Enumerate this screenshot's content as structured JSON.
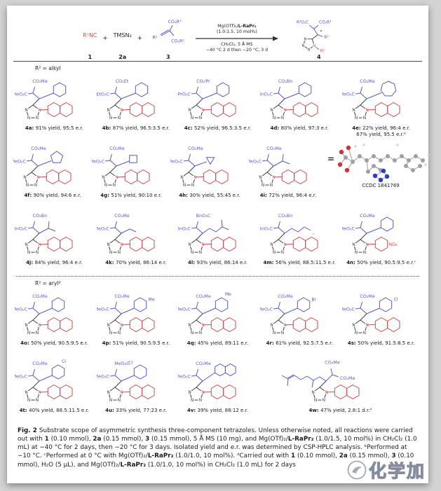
{
  "colors": {
    "red": "#c84b4b",
    "blue": "#5757cf",
    "black": "#3d3d3d"
  },
  "atoms": {
    "n": "N",
    "star": "*"
  },
  "scheme": {
    "reactant1": "R¹NC",
    "num1": "1",
    "plus": "+",
    "reagent2": "TMSN₃",
    "num2": "2a",
    "alkene_ester_top": "CO₂R³",
    "alkene_ester_bottom": "CO₂R³",
    "alkene_r2": "R²",
    "num3": "3",
    "cond_top1a": "Mg(OTf)₂/",
    "cond_top1b": "L-RaPr₂",
    "cond_top2": "(1.0:1.5, 10 mol%)",
    "cond_bot1": "CH₂Cl₂, 5 Å MS",
    "cond_bot2": "−40 °C 2 d then −20 °C, 3 d",
    "product_ester_left": "R³O₂C",
    "product_ester_right": "CO₂R³",
    "product_r2": "R²",
    "product_r1": "R¹",
    "num4": "4"
  },
  "sections": {
    "alkyl": "R² = alkyl",
    "aryl": "R² = arylᵈ"
  },
  "rows": [
    [
      "4a",
      "4b",
      "4c",
      "4d",
      "4e"
    ],
    [
      "4f",
      "4g",
      "4h",
      "4i",
      "crystal"
    ],
    [
      "4j",
      "4k",
      "4l",
      "4m",
      "4n"
    ],
    [
      "4o",
      "4p",
      "4q",
      "4r",
      "4s"
    ],
    [
      "4t",
      "4u",
      "4v",
      "4w"
    ]
  ],
  "compounds": [
    {
      "id": "4a",
      "result": "91% yield, 95:5 e.r.",
      "ester_top": "CO₂Me",
      "ester_left": "MeO₂C",
      "r2": "cyclohexyl",
      "n_aryl": "2-naphthyl"
    },
    {
      "id": "4b",
      "result": "87% yield, 96.5:3.5 e.r.",
      "ester_top": "CO₂Et",
      "ester_left": "EtO₂C",
      "r2": "cyclohexyl",
      "n_aryl": "2-naphthyl"
    },
    {
      "id": "4c",
      "result": "52% yield, 96.5:3.5 e.r.",
      "ester_top": "CO₂ⁱPr",
      "ester_left": "ⁱPrO₂C",
      "r2": "cyclohexyl",
      "n_aryl": "2-naphthyl"
    },
    {
      "id": "4d",
      "result": "80% yield, 97:3 e.r.",
      "ester_top": "CO₂Bn",
      "ester_left": "BnO₂C",
      "r2": "cyclohexyl",
      "n_aryl": "2-naphthyl"
    },
    {
      "id": "4e",
      "result": "22% yield, 96:4 e.r.",
      "result2": "67% yield, 95.5 e.r.ᵇ",
      "ester_top": "CO₂Me",
      "ester_left": "MeO₂C",
      "r2": "cycloheptyl",
      "n_aryl": "2-naphthyl"
    },
    {
      "id": "4f",
      "result": "90% yield, 94:6 e.r.",
      "ester_top": "CO₂Me",
      "ester_left": "MeO₂C",
      "r2": "cyclopentyl",
      "n_aryl": "2-naphthyl"
    },
    {
      "id": "4g",
      "result": "51% yield, 90:10 e.r.",
      "ester_top": "CO₂Me",
      "ester_left": "MeO₂C",
      "r2": "cyclobutyl",
      "n_aryl": "2-naphthyl"
    },
    {
      "id": "4h",
      "result": "30% yield, 55:45 e.r.",
      "ester_top": "CO₂Me",
      "ester_left": "MeO₂C",
      "r2": "cyclopropyl",
      "n_aryl": "2-naphthyl"
    },
    {
      "id": "4i",
      "result": "72% yield, 96:4 e.r.",
      "ester_top": "CO₂Me",
      "ester_left": "MeO₂C",
      "r2": "isopropyl",
      "n_aryl": "2-naphthyl"
    },
    {
      "id": "4j",
      "result": "84% yield, 96:4 e.r.",
      "ester_top": "CO₂Bn",
      "ester_left": "BnO₂C",
      "r2": "isopropyl",
      "n_aryl": "2-naphthyl"
    },
    {
      "id": "4k",
      "result": "70% yield, 86:14 e.r.",
      "ester_top": "CO₂Me",
      "ester_left": "MeO₂C",
      "r2": "ethyl",
      "n_aryl": "2-naphthyl"
    },
    {
      "id": "4l",
      "result": "93% yield, 86:14 e.r.",
      "ester_top": "BnO₂C",
      "ester_left": "BnO₂C",
      "r2": "isobutyl",
      "n_aryl": "2-naphthyl"
    },
    {
      "id": "4m",
      "result": "56% yield, 88.5:11.5 e.r.",
      "ester_top": "CO₂Bn",
      "ester_left": "BnO₂C",
      "r2": "chain",
      "chain_label": "₃",
      "n_aryl": "2-naphthyl"
    },
    {
      "id": "4n",
      "result": "50% yield, 90.5:9.5 e.r.ᶜ",
      "ester_top": "CO₂Me",
      "ester_left": "MeO₂C",
      "r2": "cyclohexyl",
      "n_aryl": "4-nitrophenyl",
      "aryl_sub": "NO₂"
    },
    {
      "id": "4o",
      "result": "50% yield, 90.5:9.5 e.r.",
      "ester_top": "CO₂Me",
      "ester_left": "MeO₂C",
      "r2": "phenyl",
      "n_aryl": "2-naphthyl"
    },
    {
      "id": "4p",
      "result": "51% yield, 90.5:9.5 e.r.",
      "ester_top": "CO₂Me",
      "ester_left": "MeO₂C",
      "r2": "p-tolyl",
      "r2_sub": "Me",
      "n_aryl": "2-naphthyl"
    },
    {
      "id": "4q",
      "result": "45% yield, 89:11 e.r.",
      "ester_top": "CO₂Me",
      "ester_left": "MeO₂C",
      "r2": "m-tolyl",
      "r2_sub": "Me",
      "n_aryl": "2-naphthyl"
    },
    {
      "id": "4r",
      "result": "61% yield, 92.5:7.5 e.r.",
      "ester_top": "CO₂Me",
      "ester_left": "MeO₂C",
      "r2": "p-bromophenyl",
      "r2_sub": "Br",
      "n_aryl": "2-naphthyl"
    },
    {
      "id": "4s",
      "result": "50% yield, 91.5:8.5 e.r.",
      "ester_top": "CO₂Me",
      "ester_left": "MeO₂C",
      "r2": "p-chlorophenyl",
      "r2_sub": "Cl",
      "n_aryl": "2-naphthyl"
    },
    {
      "id": "4t",
      "result": "40% yield, 88.5:11.5 e.r.",
      "ester_top": "CO₂Me",
      "ester_left": "MeO₂C",
      "r2": "m-chlorophenyl",
      "r2_sub": "Cl",
      "n_aryl": "2-naphthyl"
    },
    {
      "id": "4u",
      "result": "33% yield, 77:23 e.r.",
      "ester_top": "MeO₂C",
      "ester_left": "MeO₂C",
      "r2": "o-chlorophenyl",
      "r2_sub": "Cl",
      "n_aryl": "2-naphthyl"
    },
    {
      "id": "4v",
      "result": "39% yield, 88:12 e.r.",
      "ester_top": "CO₂Me",
      "ester_left": "MeO₂C",
      "r2": "naphthyl",
      "n_aryl": "2-naphthyl"
    },
    {
      "id": "4w",
      "result": "47% yield, 2.8:1 d.r.ᵈ",
      "ester_top": "CO₂Me",
      "ester_right": "CO₂Me",
      "r2": "citronellyl",
      "n_aryl": "2-naphthyl"
    }
  ],
  "crystal": {
    "equals": "=",
    "label": "CCDC 1841769"
  },
  "caption": {
    "segments": [
      {
        "t": "Fig. 2 ",
        "b": 1
      },
      {
        "t": "Substrate scope of asymmetric synthesis three-component tetrazoles. Unless otherwise noted, all reactions were carried out with "
      },
      {
        "t": "1",
        "b": 1
      },
      {
        "t": " (0.10 mmol), "
      },
      {
        "t": "2a",
        "b": 1
      },
      {
        "t": " (0.15 mmol), "
      },
      {
        "t": "3",
        "b": 1
      },
      {
        "t": " (0.15 mmol), 5 Å MS (10 mg), and Mg(OTf)₂/"
      },
      {
        "t": "L-RaPr₂",
        "b": 1
      },
      {
        "t": " (1.0/1.5, 10 mol%) in CH₂Cl₂ (1.0 mL) at −40 °C for 2 days, then −20 °C for 3 days. Isolated yield and e.r. was determined by CSP-HPLC analysis. ᵇPerformed at −10 °C. ᶜPerformed at 0 °C with Mg(OTf)₂/"
      },
      {
        "t": "L-RaPr₂",
        "b": 1
      },
      {
        "t": " (1.0/1.0, 10 mol%). ᵈCarried out with "
      },
      {
        "t": "1",
        "b": 1
      },
      {
        "t": " (0.10 mmol), "
      },
      {
        "t": "2a",
        "b": 1
      },
      {
        "t": " (0.15 mmol), "
      },
      {
        "t": "3",
        "b": 1
      },
      {
        "t": " (0.10 mmol), H₂O (5 μL), and Mg(OTf)₂/"
      },
      {
        "t": "L-RaPr₂",
        "b": 1
      },
      {
        "t": " (1.0/1.0, 10 mol%) in CH₂Cl₂ (1.0 mL) for 2 days"
      }
    ]
  },
  "watermark": {
    "text": "化学加"
  }
}
